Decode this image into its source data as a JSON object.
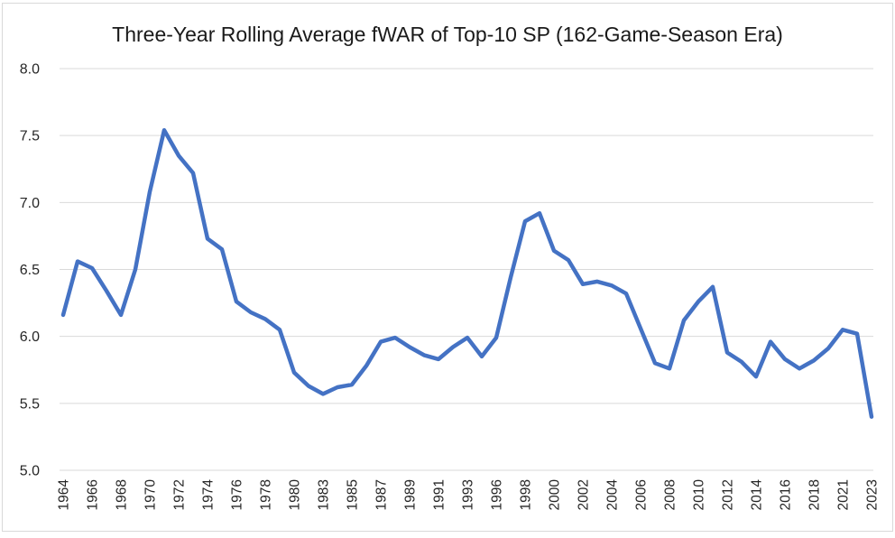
{
  "window": {
    "background_color": "#FFFFFF",
    "border_color": "#D9D9D9"
  },
  "chart_data": {
    "type": "line",
    "title": "Three-Year Rolling Average fWAR of Top-10 SP (162-Game-Season Era)",
    "xlabel": "",
    "ylabel": "",
    "legend": "none",
    "grid": "horizontal-only",
    "ylim": [
      5.0,
      8.0
    ],
    "ytick_step": 0.5,
    "yticks": [
      "5.0",
      "5.5",
      "6.0",
      "6.5",
      "7.0",
      "7.5",
      "8.0"
    ],
    "x_tick_labels_shown": [
      1964,
      1966,
      1968,
      1970,
      1972,
      1974,
      1976,
      1978,
      1980,
      1983,
      1985,
      1987,
      1989,
      1991,
      1993,
      1996,
      1998,
      2000,
      2002,
      2004,
      2006,
      2008,
      2010,
      2012,
      2014,
      2016,
      2018,
      2021,
      2023
    ],
    "categories": [
      1964,
      1965,
      1966,
      1967,
      1968,
      1969,
      1970,
      1971,
      1972,
      1973,
      1974,
      1975,
      1976,
      1977,
      1978,
      1979,
      1980,
      1982,
      1983,
      1984,
      1985,
      1986,
      1987,
      1988,
      1989,
      1990,
      1991,
      1992,
      1993,
      1994,
      1996,
      1997,
      1998,
      1999,
      2000,
      2001,
      2002,
      2003,
      2004,
      2005,
      2006,
      2007,
      2008,
      2009,
      2010,
      2011,
      2012,
      2013,
      2014,
      2015,
      2016,
      2017,
      2018,
      2019,
      2021,
      2022,
      2023
    ],
    "values": [
      6.16,
      6.56,
      6.51,
      6.34,
      6.16,
      6.5,
      7.08,
      7.54,
      7.35,
      7.22,
      6.73,
      6.65,
      6.26,
      6.18,
      6.13,
      6.05,
      5.73,
      5.63,
      5.57,
      5.62,
      5.64,
      5.78,
      5.96,
      5.99,
      5.92,
      5.86,
      5.83,
      5.92,
      5.99,
      5.85,
      5.99,
      6.44,
      6.86,
      6.92,
      6.64,
      6.57,
      6.39,
      6.41,
      6.38,
      6.32,
      6.06,
      5.8,
      5.76,
      6.12,
      6.26,
      6.37,
      5.88,
      5.81,
      5.7,
      5.96,
      5.83,
      5.76,
      5.82,
      5.91,
      6.05,
      6.02,
      5.4
    ],
    "line_color": "#4472C4",
    "gridline_color": "#D9D9D9",
    "tick_label_color": "#262626",
    "title_color": "#1A1A1A"
  }
}
